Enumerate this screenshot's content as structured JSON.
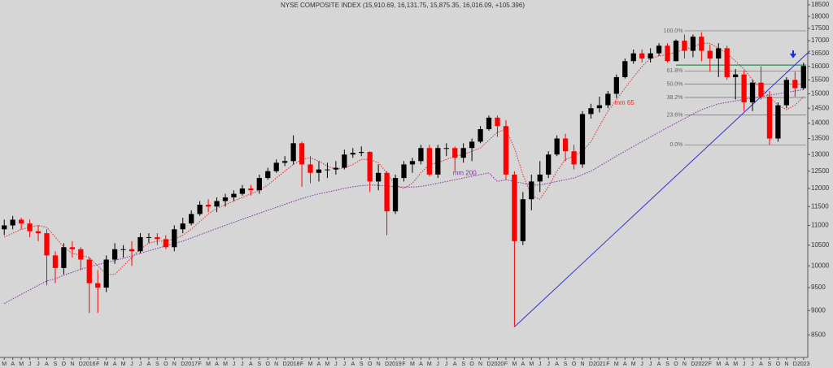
{
  "chart_data": {
    "type": "candlestick",
    "title": "NYSE COMPOSITE INDEX (15,910.69, 16,131.75, 15,875.35, 16,016.09, +105.396)",
    "log_scale": true,
    "up_color": "#000000",
    "down_color": "#ff0000",
    "categories": [
      "M",
      "A",
      "M",
      "J",
      "J",
      "A",
      "S",
      "O",
      "N",
      "D",
      "2016",
      "F",
      "M",
      "A",
      "M",
      "J",
      "J",
      "A",
      "S",
      "O",
      "N",
      "D",
      "2017",
      "F",
      "M",
      "A",
      "M",
      "J",
      "J",
      "A",
      "S",
      "O",
      "N",
      "D",
      "2018",
      "F",
      "M",
      "A",
      "M",
      "J",
      "J",
      "A",
      "S",
      "O",
      "N",
      "D",
      "2019",
      "F",
      "M",
      "A",
      "M",
      "J",
      "J",
      "A",
      "S",
      "O",
      "N",
      "D",
      "2020",
      "F",
      "M",
      "A",
      "M",
      "J",
      "J",
      "A",
      "S",
      "O",
      "N",
      "D",
      "2021",
      "F",
      "M",
      "A",
      "M",
      "J",
      "J",
      "A",
      "S",
      "O",
      "N",
      "D",
      "2022",
      "F",
      "M",
      "A",
      "M",
      "J",
      "J",
      "A",
      "S",
      "O",
      "N",
      "D",
      "2023"
    ],
    "open": [
      10900,
      11000,
      11150,
      11050,
      10850,
      10800,
      10250,
      9950,
      10450,
      10400,
      10150,
      9600,
      9500,
      10150,
      10400,
      10400,
      10350,
      10700,
      10700,
      10650,
      10450,
      10900,
      11050,
      11300,
      11550,
      11500,
      11650,
      11750,
      11850,
      12000,
      11950,
      12300,
      12500,
      12750,
      12800,
      13350,
      12700,
      12450,
      12550,
      12550,
      12600,
      13000,
      13050,
      13080,
      12200,
      12450,
      11370,
      12300,
      12700,
      12800,
      13200,
      12400,
      13200,
      13200,
      12900,
      13200,
      13400,
      13800,
      14180,
      13900,
      12400,
      10600,
      11700,
      12200,
      12400,
      13000,
      13500,
      13100,
      12700,
      14300,
      14500,
      14600,
      15000,
      15600,
      16200,
      16500,
      16300,
      16500,
      16800,
      16200,
      17000,
      16600,
      17160,
      16600,
      16300,
      16700,
      15600,
      15700,
      14700,
      15400,
      14900,
      13500,
      14600,
      15500,
      15200
    ],
    "high": [
      11150,
      11250,
      11200,
      11150,
      11000,
      10900,
      10350,
      10550,
      10600,
      10450,
      10200,
      9900,
      10250,
      10550,
      10500,
      10600,
      10800,
      10800,
      10800,
      10750,
      11000,
      11200,
      11400,
      11650,
      11700,
      11750,
      11850,
      11950,
      12100,
      12100,
      12400,
      12600,
      12850,
      12950,
      13600,
      13400,
      12950,
      12800,
      12750,
      12800,
      13150,
      13200,
      13250,
      13100,
      12700,
      12500,
      12400,
      12800,
      12900,
      13300,
      13300,
      13300,
      13350,
      13250,
      13350,
      13500,
      13900,
      14250,
      14250,
      14100,
      12500,
      11900,
      12400,
      12800,
      13100,
      13600,
      13650,
      13300,
      14400,
      14650,
      14900,
      15100,
      15700,
      16300,
      16650,
      16650,
      16700,
      16900,
      16900,
      17050,
      17250,
      17250,
      17350,
      16850,
      16900,
      16800,
      15900,
      15850,
      15500,
      16000,
      15100,
      14700,
      15600,
      15800,
      16140
    ],
    "low": [
      10750,
      10900,
      10900,
      10700,
      10600,
      9550,
      9600,
      9800,
      10200,
      9900,
      8950,
      8950,
      9400,
      10050,
      10200,
      10000,
      10300,
      10550,
      10500,
      10400,
      10350,
      10800,
      11000,
      11250,
      11350,
      11350,
      11500,
      11650,
      11800,
      11800,
      11850,
      12250,
      12450,
      12650,
      12700,
      12050,
      12150,
      12200,
      12300,
      12400,
      12550,
      12900,
      12950,
      11900,
      11950,
      10750,
      11300,
      12200,
      12450,
      12700,
      12350,
      12300,
      12950,
      12500,
      12750,
      12800,
      13350,
      13750,
      13550,
      12250,
      8660,
      10500,
      11400,
      11900,
      12300,
      12950,
      12800,
      12550,
      12600,
      14150,
      14350,
      14500,
      14850,
      15550,
      16100,
      16150,
      16150,
      16400,
      16150,
      16200,
      16300,
      16350,
      16200,
      15800,
      15600,
      15500,
      14800,
      14400,
      14400,
      14800,
      13300,
      13400,
      14500,
      14900,
      15150
    ],
    "close": [
      11000,
      11150,
      11050,
      10850,
      10800,
      10250,
      9950,
      10450,
      10400,
      10150,
      9600,
      9500,
      10150,
      10400,
      10400,
      10350,
      10700,
      10700,
      10650,
      10450,
      10900,
      11050,
      11300,
      11550,
      11500,
      11650,
      11750,
      11850,
      12000,
      11950,
      12300,
      12500,
      12750,
      12800,
      13350,
      12700,
      12450,
      12550,
      12550,
      12600,
      13000,
      13050,
      13080,
      12200,
      12450,
      11370,
      12300,
      12700,
      12800,
      13200,
      12400,
      13200,
      13200,
      12900,
      13200,
      13400,
      13800,
      14180,
      13900,
      12400,
      10600,
      11700,
      12200,
      12400,
      13000,
      13500,
      13100,
      12700,
      14300,
      14500,
      14600,
      15000,
      15600,
      16200,
      16500,
      16300,
      16500,
      16800,
      16200,
      17000,
      16600,
      17160,
      16600,
      16300,
      16700,
      15600,
      15700,
      14700,
      15400,
      14900,
      13500,
      14600,
      15500,
      15200,
      16016
    ],
    "series": [
      {
        "name": "mm 65",
        "color": "#e03030",
        "values": [
          10700,
          10800,
          10900,
          10950,
          11000,
          10950,
          10700,
          10450,
          10300,
          10250,
          10200,
          10000,
          9800,
          9800,
          10000,
          10200,
          10400,
          10550,
          10600,
          10600,
          10650,
          10750,
          10900,
          11100,
          11300,
          11450,
          11550,
          11650,
          11750,
          11850,
          11950,
          12100,
          12300,
          12500,
          12700,
          12850,
          12900,
          12800,
          12650,
          12550,
          12600,
          12700,
          12850,
          12850,
          12750,
          12450,
          12100,
          12000,
          12150,
          12450,
          12700,
          12750,
          12850,
          12950,
          13000,
          13100,
          13200,
          13450,
          13700,
          13800,
          13200,
          12400,
          11800,
          11700,
          12050,
          12500,
          12850,
          12950,
          13100,
          13400,
          13900,
          14400,
          14800,
          15200,
          15600,
          16000,
          16300,
          16400,
          16450,
          16550,
          16650,
          16750,
          16900,
          16900,
          16700,
          16500,
          16200,
          15900,
          15500,
          15200,
          14900,
          14600,
          14450,
          14600,
          14900
        ]
      },
      {
        "name": "mm 200",
        "color": "#8030a0",
        "values": [
          9150,
          9250,
          9350,
          9450,
          9550,
          9650,
          9700,
          9780,
          9850,
          9920,
          9980,
          10030,
          10080,
          10130,
          10180,
          10240,
          10300,
          10360,
          10420,
          10480,
          10540,
          10600,
          10680,
          10760,
          10840,
          10920,
          11000,
          11080,
          11160,
          11240,
          11320,
          11400,
          11480,
          11560,
          11640,
          11720,
          11790,
          11850,
          11900,
          11950,
          12000,
          12050,
          12080,
          12100,
          12090,
          12070,
          12050,
          12040,
          12040,
          12060,
          12100,
          12150,
          12200,
          12250,
          12300,
          12350,
          12400,
          12450,
          12200,
          12250,
          12200,
          12150,
          12100,
          12100,
          12150,
          12200,
          12250,
          12300,
          12400,
          12500,
          12650,
          12800,
          12950,
          13100,
          13250,
          13400,
          13550,
          13700,
          13850,
          14000,
          14150,
          14300,
          14450,
          14550,
          14650,
          14700,
          14750,
          14800,
          14850,
          14900,
          14950,
          15000,
          15050,
          15100,
          15150
        ]
      }
    ],
    "fib_levels": [
      {
        "value": 17400,
        "label": "100.0%"
      },
      {
        "value": 15830,
        "label": "61.8%"
      },
      {
        "value": 15350,
        "label": "50.0%"
      },
      {
        "value": 14870,
        "label": "38.2%"
      },
      {
        "value": 14270,
        "label": "23.6%"
      },
      {
        "value": 13300,
        "label": "0.0%"
      }
    ],
    "resistance": {
      "value": 16050,
      "color": "#2e8b57"
    },
    "trendline": {
      "color": "#3030d0",
      "from": [
        60,
        8660
      ],
      "to": [
        94,
        16600
      ]
    },
    "ylim": [
      8090,
      18710
    ],
    "yticks": [
      8500,
      9000,
      9500,
      10000,
      10500,
      11000,
      11500,
      12000,
      12500,
      13000,
      13500,
      14000,
      14500,
      15000,
      15500,
      16000,
      16500,
      17000,
      17500,
      18000,
      18500
    ]
  }
}
